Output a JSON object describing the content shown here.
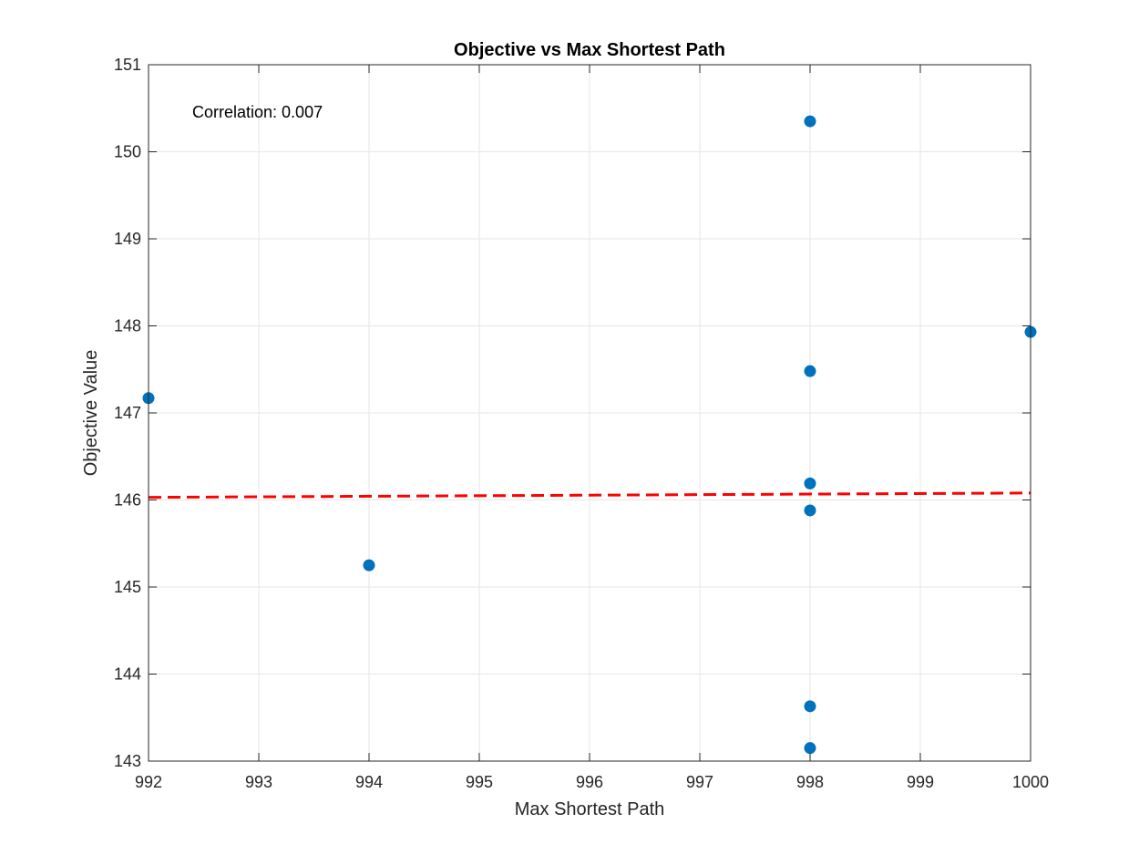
{
  "chart_data": {
    "type": "scatter",
    "title": "Objective vs Max Shortest Path",
    "xlabel": "Max Shortest Path",
    "ylabel": "Objective Value",
    "xlim": [
      992,
      1000
    ],
    "ylim": [
      143,
      151
    ],
    "xticks": [
      "992",
      "993",
      "994",
      "995",
      "996",
      "997",
      "998",
      "999",
      "1000"
    ],
    "yticks": [
      "143",
      "144",
      "145",
      "146",
      "147",
      "148",
      "149",
      "150",
      "151"
    ],
    "grid": true,
    "annotation": "Correlation: 0.007",
    "series": [
      {
        "x": [
          992,
          994,
          998,
          998,
          998,
          998,
          998,
          998,
          1000
        ],
        "y": [
          147.17,
          145.25,
          150.35,
          147.48,
          146.19,
          145.88,
          143.63,
          143.15,
          147.93
        ]
      }
    ],
    "trendline": {
      "x": [
        992,
        1000
      ],
      "y": [
        146.03,
        146.08
      ]
    },
    "colors": {
      "points": "#0072BD",
      "trendline": "#FF0000",
      "grid": "#e6e6e6",
      "axis": "#262626"
    }
  }
}
